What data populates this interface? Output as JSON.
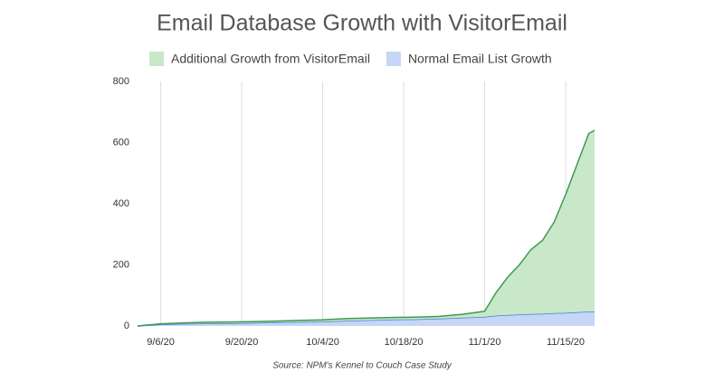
{
  "chart_data": {
    "type": "stacked-area",
    "title": "Email Database Growth with VisitorEmail",
    "source": "Source: NPM's Kennel to Couch Case Study",
    "x": [
      "9/2/20",
      "9/6/20",
      "9/10/20",
      "9/14/20",
      "9/18/20",
      "9/22/20",
      "9/26/20",
      "9/30/20",
      "10/4/20",
      "10/8/20",
      "10/12/20",
      "10/16/20",
      "10/20/20",
      "10/24/20",
      "10/28/20",
      "11/1/20",
      "11/3/20",
      "11/5/20",
      "11/7/20",
      "11/9/20",
      "11/11/20",
      "11/13/20",
      "11/15/20",
      "11/17/20",
      "11/19/20",
      "11/20/20"
    ],
    "series": [
      {
        "name": "Additional Growth from VisitorEmail",
        "color": "#c8e8c9",
        "line_color": "#3f9a52",
        "values": [
          0,
          2,
          3,
          4,
          4,
          4,
          4,
          5,
          6,
          7,
          7,
          7,
          7,
          7,
          11,
          18,
          76,
          124,
          162,
          211,
          240,
          298,
          387,
          485,
          583,
          593
        ]
      },
      {
        "name": "Normal Email List Growth",
        "color": "#c5d6f6",
        "line_color": "#4a7fd6",
        "values": [
          0,
          5,
          7,
          8,
          9,
          10,
          12,
          13,
          14,
          17,
          19,
          21,
          22,
          24,
          27,
          30,
          34,
          36,
          38,
          39,
          40,
          42,
          43,
          45,
          47,
          47
        ]
      }
    ],
    "xticks": [
      "9/6/20",
      "9/20/20",
      "10/4/20",
      "10/18/20",
      "11/1/20",
      "11/15/20"
    ],
    "ylim": [
      0,
      800
    ],
    "yticks": [
      0,
      200,
      400,
      600,
      800
    ],
    "grid": "x"
  }
}
